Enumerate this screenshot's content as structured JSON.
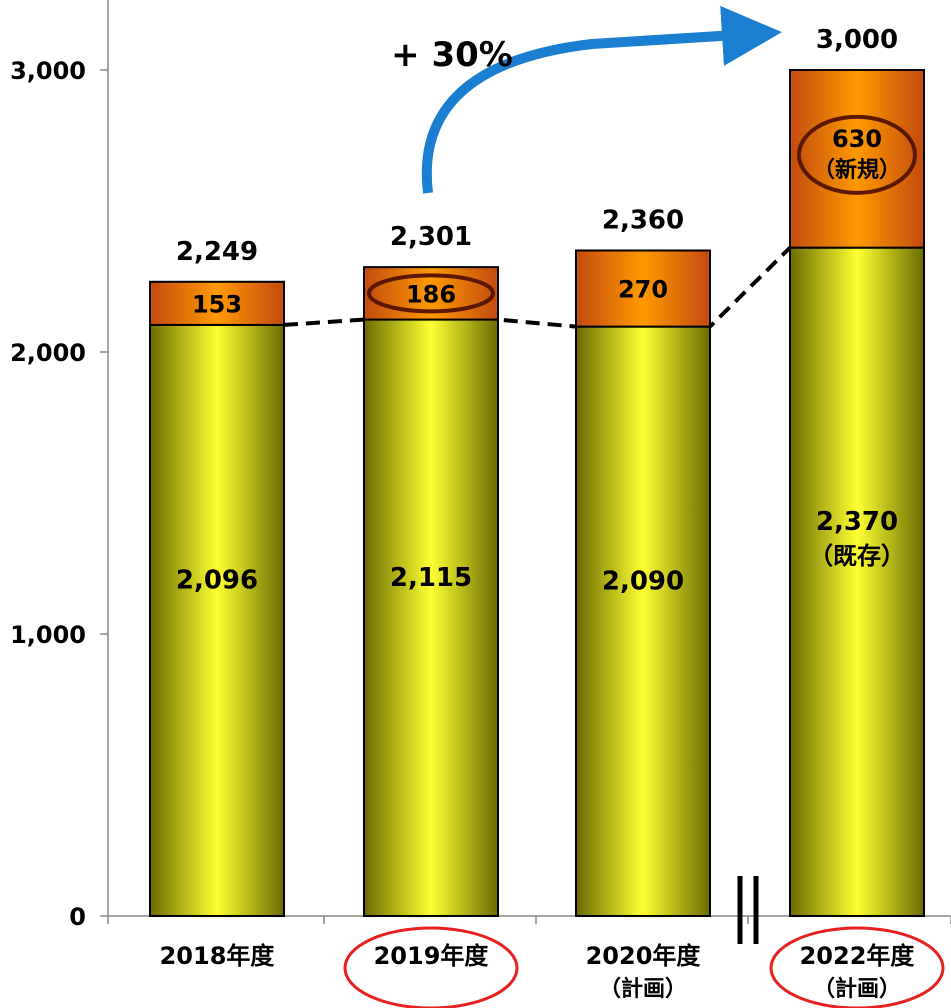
{
  "chart_data": {
    "type": "bar",
    "stacked": true,
    "categories": [
      "2018年度",
      "2019年度",
      "2020年度",
      "2022年度"
    ],
    "category_notes": [
      "",
      "",
      "（計画）",
      "（計画）"
    ],
    "series": [
      {
        "values": [
          2096,
          2115,
          2090,
          2370
        ],
        "value_labels": [
          "2,096",
          "2,115",
          "2,090",
          "2,370"
        ]
      },
      {
        "values": [
          153,
          186,
          270,
          630
        ],
        "value_labels": [
          "153",
          "186",
          "270",
          "630"
        ]
      }
    ],
    "series_notes": {
      "base_last": "（既存）",
      "top_last": "（新規）"
    },
    "totals": [
      2249,
      2301,
      2360,
      3000
    ],
    "total_labels": [
      "2,249",
      "2,301",
      "2,360",
      "3,000"
    ],
    "yticks": [
      0,
      1000,
      2000,
      3000
    ],
    "ytick_labels": [
      "0",
      "1,000",
      "2,000",
      "3,000"
    ],
    "ylim": [
      0,
      3000
    ],
    "grid": false,
    "title": "",
    "xlabel": "",
    "ylabel": "",
    "annotation_growth": "+ 30%",
    "colors": {
      "base_fill": "#d9d900",
      "base_edge": "#6b6b00",
      "top_fill": "#f08a10",
      "top_edge": "#c24a10",
      "growth_arrow": "#1a7fd0",
      "highlight_circle": "#e82020",
      "inner_circle": "#5a1800"
    }
  }
}
